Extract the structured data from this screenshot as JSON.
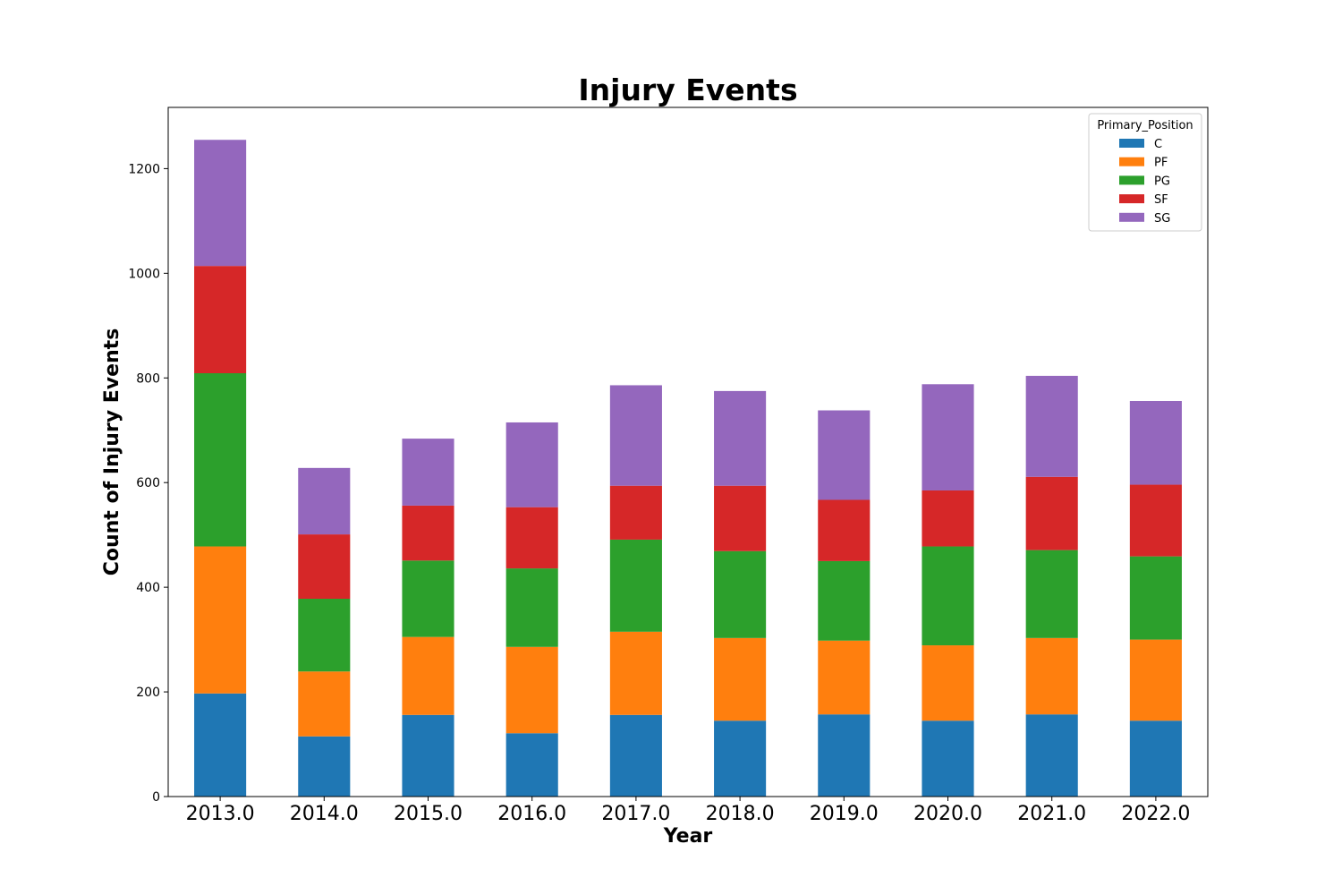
{
  "chart_data": {
    "type": "bar",
    "stacked": true,
    "title": "Injury Events",
    "xlabel": "Year",
    "ylabel": "Count of Injury Events",
    "categories": [
      "2013.0",
      "2014.0",
      "2015.0",
      "2016.0",
      "2017.0",
      "2018.0",
      "2019.0",
      "2020.0",
      "2021.0",
      "2022.0"
    ],
    "yticks": [
      0,
      200,
      400,
      600,
      800,
      1000,
      1200
    ],
    "ylim": [
      0,
      1317
    ],
    "grid": false,
    "legend": {
      "title": "Primary_Position",
      "placement": "top-right"
    },
    "series": [
      {
        "name": "C",
        "color": "#1f77b4",
        "values": [
          197,
          115,
          156,
          121,
          156,
          145,
          157,
          145,
          157,
          145
        ]
      },
      {
        "name": "PF",
        "color": "#ff7f0e",
        "values": [
          281,
          124,
          149,
          165,
          159,
          158,
          141,
          144,
          146,
          155
        ]
      },
      {
        "name": "PG",
        "color": "#2ca02c",
        "values": [
          331,
          139,
          146,
          150,
          176,
          166,
          152,
          189,
          168,
          159
        ]
      },
      {
        "name": "SF",
        "color": "#d62728",
        "values": [
          205,
          123,
          105,
          117,
          103,
          125,
          117,
          107,
          140,
          137
        ]
      },
      {
        "name": "SG",
        "color": "#9467bd",
        "values": [
          241,
          127,
          128,
          162,
          192,
          181,
          171,
          203,
          193,
          160
        ]
      }
    ]
  }
}
